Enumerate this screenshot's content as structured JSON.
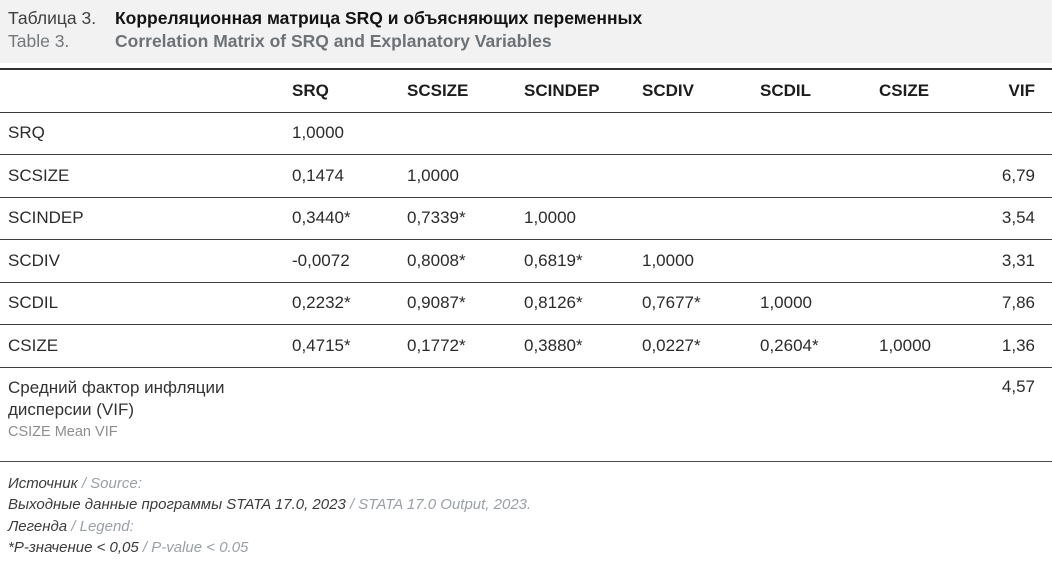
{
  "title": {
    "ru_prefix": "Таблица 3.",
    "ru_title": "Корреляционная матрица SRQ и объясняющих переменных",
    "en_prefix": "Table 3.",
    "en_title": "Correlation Matrix of SRQ and Explanatory Variables"
  },
  "table": {
    "columns": [
      "",
      "SRQ",
      "SCSIZE",
      "SCINDEP",
      "SCDIV",
      "SCDIL",
      "CSIZE",
      "VIF"
    ],
    "rows": [
      {
        "label": "SRQ",
        "values": [
          "1,0000",
          "",
          "",
          "",
          "",
          ""
        ],
        "vif": ""
      },
      {
        "label": "SCSIZE",
        "values": [
          "0,1474",
          "1,0000",
          "",
          "",
          "",
          ""
        ],
        "vif": "6,79"
      },
      {
        "label": "SCINDEP",
        "values": [
          "0,3440*",
          "0,7339*",
          "1,0000",
          "",
          "",
          ""
        ],
        "vif": "3,54"
      },
      {
        "label": "SCDIV",
        "values": [
          "-0,0072",
          "0,8008*",
          "0,6819*",
          "1,0000",
          "",
          ""
        ],
        "vif": "3,31"
      },
      {
        "label": "SCDIL",
        "values": [
          "0,2232*",
          "0,9087*",
          "0,8126*",
          "0,7677*",
          "1,0000",
          ""
        ],
        "vif": "7,86"
      },
      {
        "label": "CSIZE",
        "values": [
          "0,4715*",
          "0,1772*",
          "0,3880*",
          "0,0227*",
          "0,2604*",
          "1,0000"
        ],
        "vif": "1,36"
      }
    ],
    "summary_row": {
      "label_ru": "Средний фактор инфляции дисперсии (VIF)",
      "label_en": "CSIZE Mean VIF",
      "vif": "4,57"
    }
  },
  "notes": {
    "source_ru": "Источник ",
    "source_en": "/ Source:",
    "source_body_ru": "Выходные данные программы STATA 17.0, 2023 ",
    "source_body_en": "/ STATA 17.0 Output, 2023.",
    "legend_ru": "Легенда ",
    "legend_en": "/ Legend:",
    "legend_body_ru": "*P-значение < 0,05 ",
    "legend_body_en": "/ P-value < 0.05"
  }
}
